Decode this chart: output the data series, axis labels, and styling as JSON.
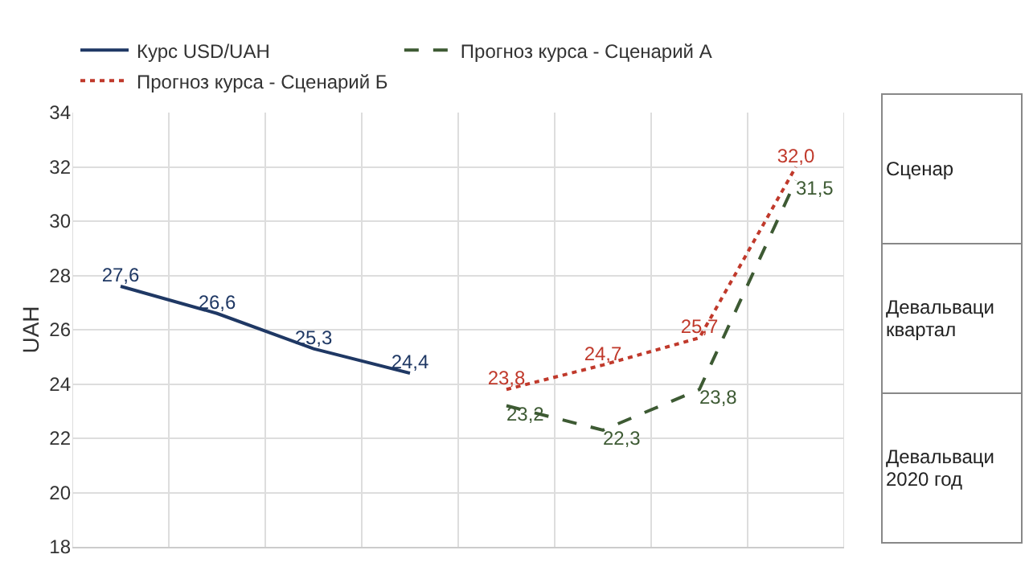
{
  "chart_data": {
    "type": "line",
    "ylabel": "UAH",
    "categories": [
      null,
      null,
      null,
      null,
      null,
      null,
      null,
      null
    ],
    "series": [
      {
        "name": "Курс USD/UAH",
        "color": "#1f3864",
        "line_style": "solid",
        "values": [
          27.6,
          26.6,
          25.3,
          24.4,
          null,
          null,
          null,
          null
        ],
        "value_labels": [
          "27,6",
          "26,6",
          "25,3",
          "24,4",
          null,
          null,
          null,
          null
        ]
      },
      {
        "name": "Прогноз курса - Сценарий А",
        "color": "#3d5a33",
        "line_style": "dashed",
        "values": [
          null,
          null,
          null,
          null,
          23.2,
          22.3,
          23.8,
          31.5
        ],
        "value_labels": [
          null,
          null,
          null,
          null,
          "23,2",
          "22,3",
          "23,8",
          "31,5"
        ]
      },
      {
        "name": "Прогноз курса - Сценарий Б",
        "color": "#c0392b",
        "line_style": "dotted",
        "values": [
          null,
          null,
          null,
          null,
          23.8,
          24.7,
          25.7,
          32.0
        ],
        "value_labels": [
          null,
          null,
          null,
          null,
          "23,8",
          "24,7",
          "25,7",
          "32,0"
        ]
      }
    ],
    "ylim": [
      18,
      34
    ],
    "yticks": [
      18,
      20,
      22,
      24,
      26,
      28,
      30,
      32,
      34
    ],
    "grid": true,
    "legend": "top left",
    "marker": "none",
    "annotations": [
      "Сценар",
      "Девальваци квартал",
      "Девальваци 2020 год"
    ]
  }
}
